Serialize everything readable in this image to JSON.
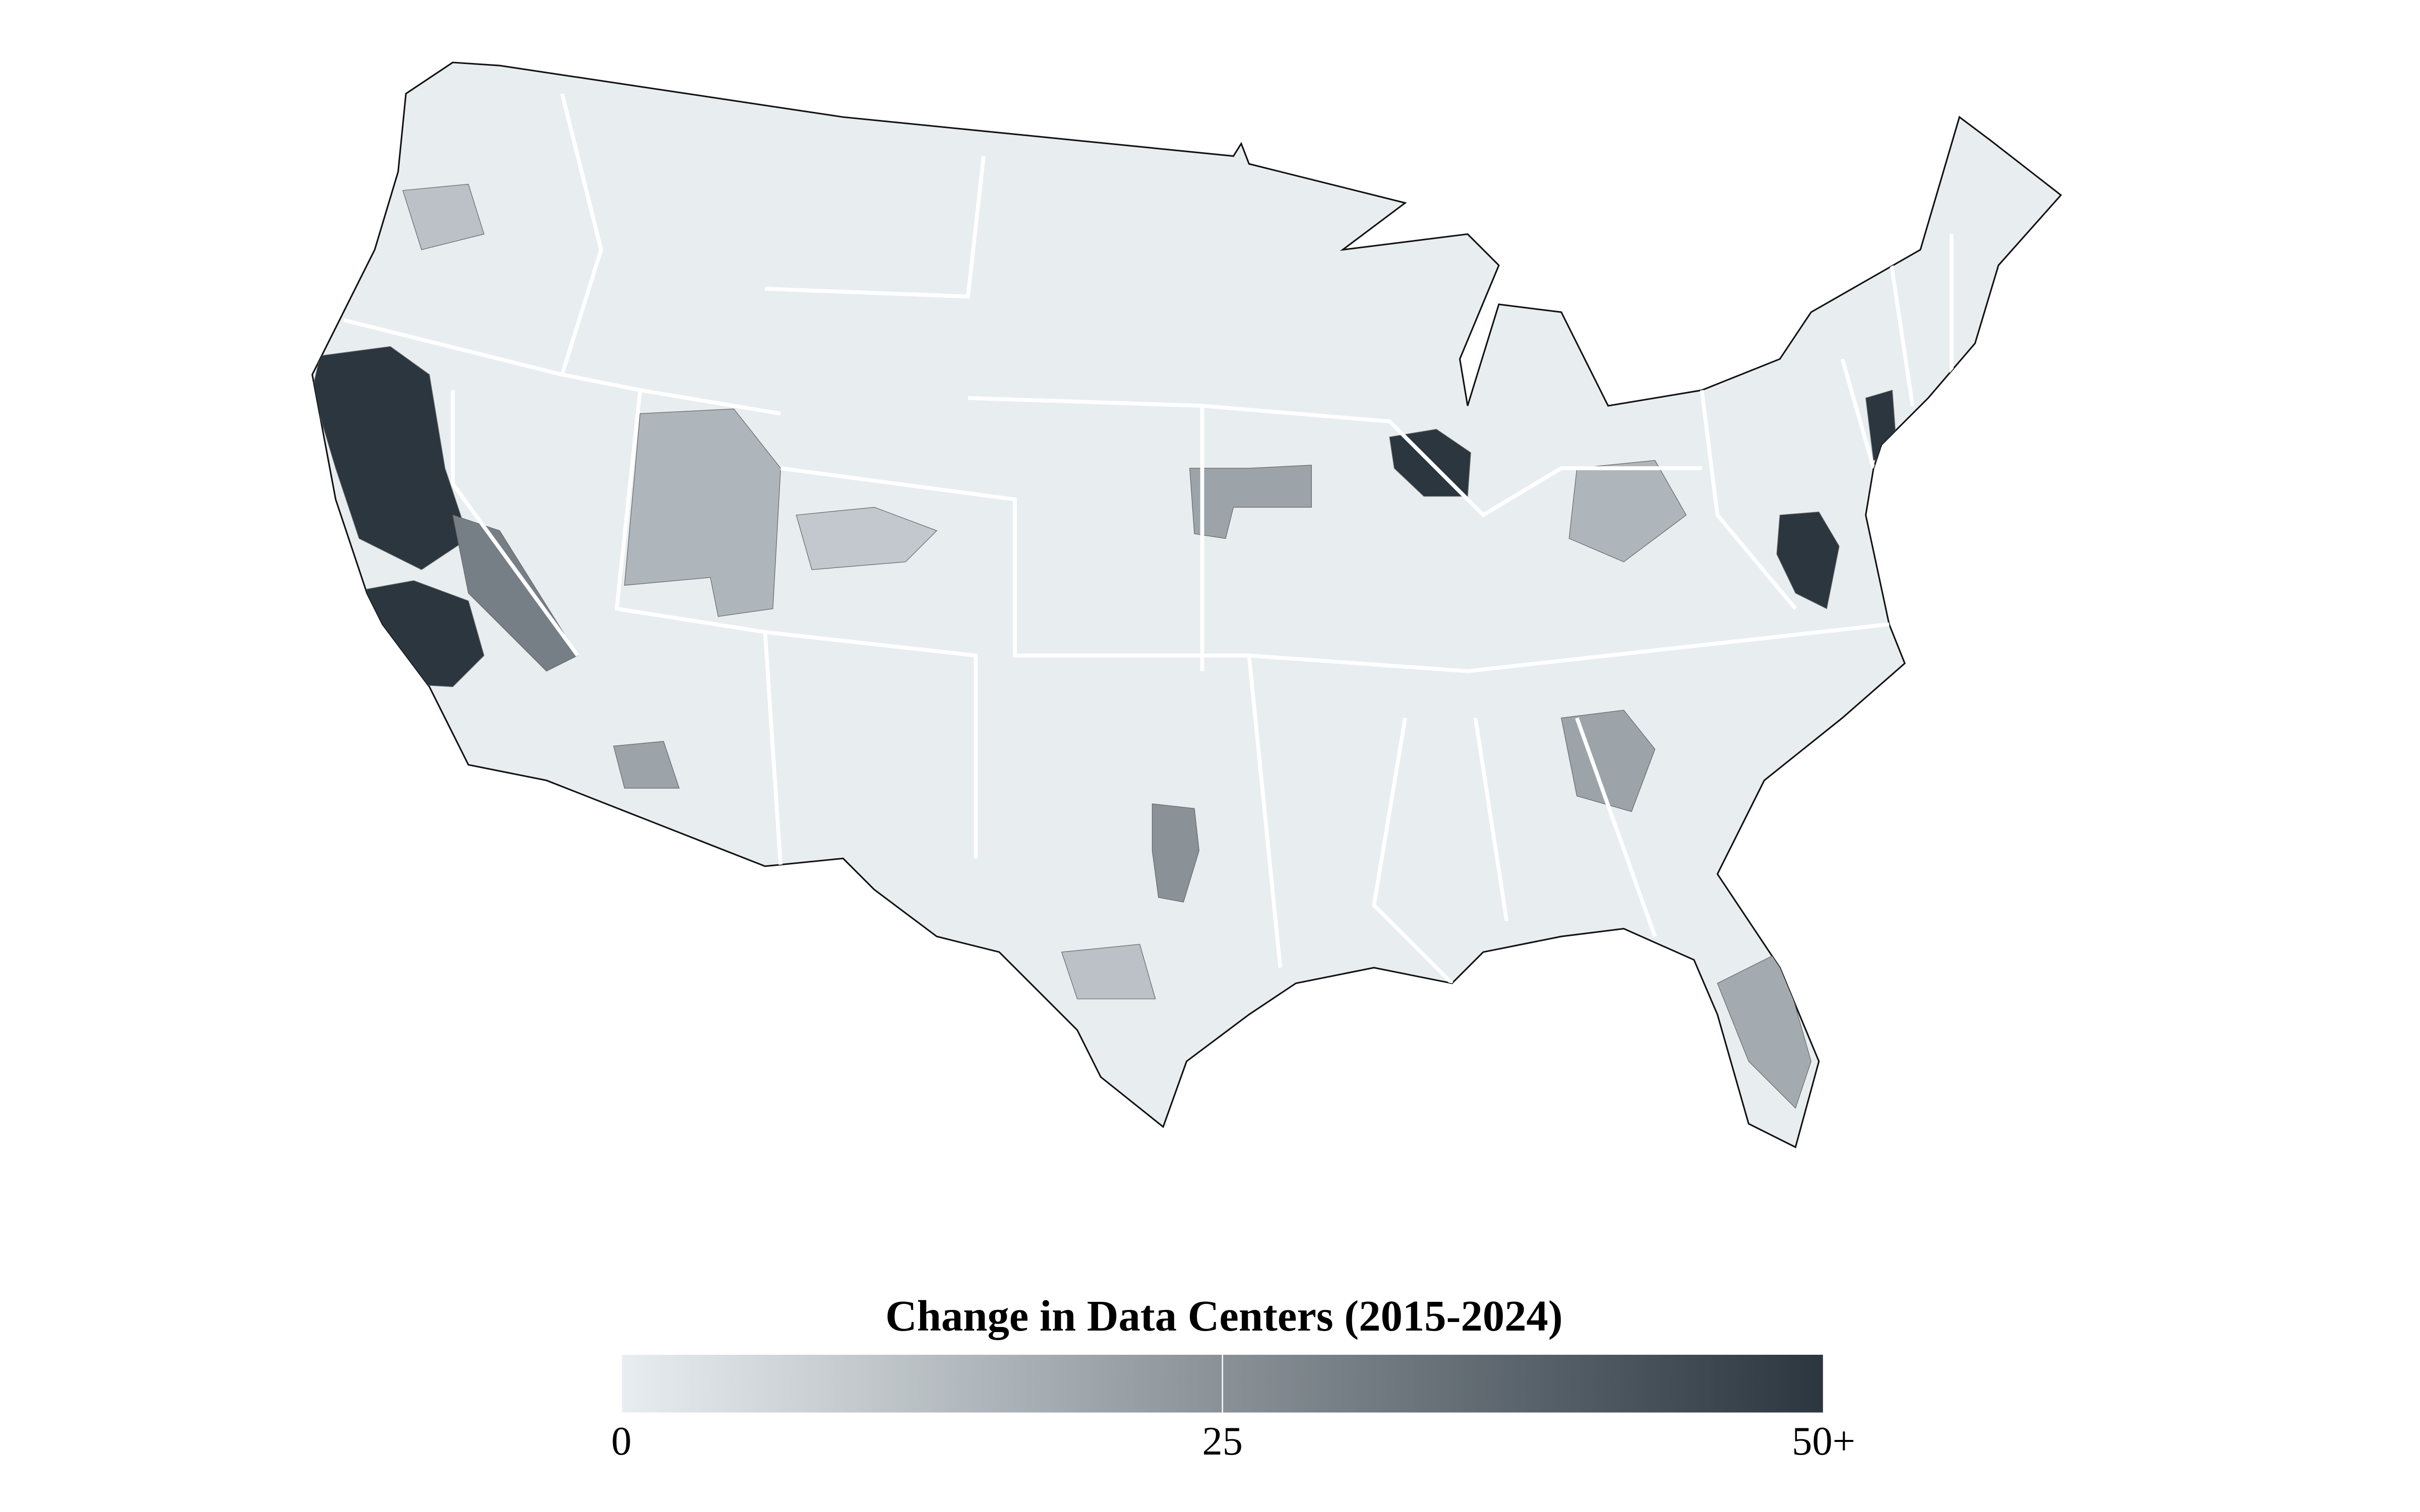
{
  "chart_data": {
    "type": "choropleth",
    "title": "Change in Data Centers (2015-2024)",
    "values": [
      50,
      50,
      50,
      50,
      50,
      30,
      15,
      20,
      25,
      20,
      15,
      20,
      12,
      18,
      10,
      12
    ],
    "colors": [
      "#e8edf0",
      "#2b363f"
    ],
    "range": [
      0,
      50
    ],
    "ticks": [
      0,
      25,
      {
        "value": 50,
        "label": "50+"
      }
    ]
  }
}
